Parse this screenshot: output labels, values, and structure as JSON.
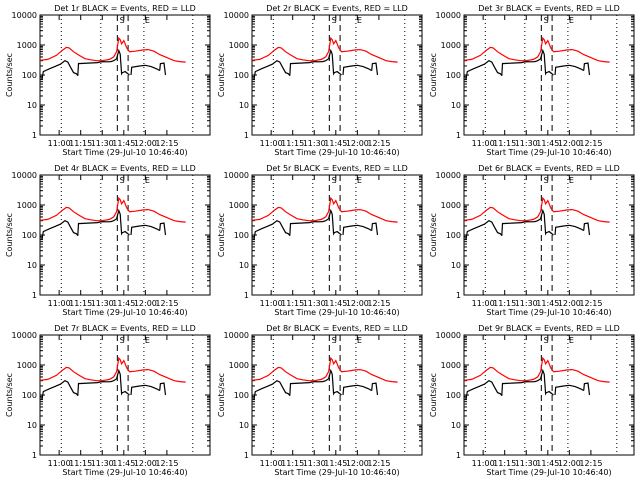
{
  "chart_data": [
    {
      "type": "line",
      "title": "Det 1r BLACK = Events, RED = LLD"
    },
    {
      "type": "line",
      "title": "Det 2r BLACK = Events, RED = LLD"
    },
    {
      "type": "line",
      "title": "Det 3r BLACK = Events, RED = LLD"
    },
    {
      "type": "line",
      "title": "Det 4r BLACK = Events, RED = LLD"
    },
    {
      "type": "line",
      "title": "Det 5r BLACK = Events, RED = LLD"
    },
    {
      "type": "line",
      "title": "Det 6r BLACK = Events, RED = LLD"
    },
    {
      "type": "line",
      "title": "Det 7r BLACK = Events, RED = LLD"
    },
    {
      "type": "line",
      "title": "Det 8r BLACK = Events, RED = LLD"
    },
    {
      "type": "line",
      "title": "Det 9r BLACK = Events, RED = LLD"
    }
  ],
  "shared": {
    "xlabel": "Start Time (29-Jul-10 10:46:40)",
    "ylabel": "Counts/sec",
    "x_tick_labels": [
      "11:00",
      "11:15",
      "11:30",
      "11:45",
      "12:00",
      "12:15"
    ],
    "x_tick_minutes": [
      660,
      675,
      690,
      705,
      720,
      735
    ],
    "y_tick_labels": [
      "1",
      "10",
      "100",
      "1000",
      "10000"
    ],
    "y_tick_values": [
      1,
      10,
      100,
      1000,
      10000
    ],
    "xlim_minutes": [
      646.67,
      765
    ],
    "ylim": [
      1,
      10000
    ],
    "y_scale": "log",
    "marker_S_label": "S",
    "marker_E_label": "E",
    "dotted_lines_minutes": [
      661.5,
      689,
      719,
      753
    ],
    "dashed_lines_minutes": [
      700.5,
      708
    ],
    "colors": {
      "lld": "#ff0000",
      "events": "#000000"
    },
    "series_names": [
      "Events",
      "LLD"
    ],
    "lld_series": [
      [
        646.67,
        310
      ],
      [
        652,
        330
      ],
      [
        658,
        450
      ],
      [
        662,
        650
      ],
      [
        665,
        830
      ],
      [
        667,
        800
      ],
      [
        670,
        600
      ],
      [
        674,
        450
      ],
      [
        678,
        350
      ],
      [
        682,
        320
      ],
      [
        686,
        300
      ],
      [
        690,
        300
      ],
      [
        695,
        330
      ],
      [
        698,
        400
      ],
      [
        700,
        600
      ],
      [
        701.5,
        1700
      ],
      [
        702.5,
        1500
      ],
      [
        703.5,
        1100
      ],
      [
        705,
        1400
      ],
      [
        706,
        1100
      ],
      [
        707,
        800
      ],
      [
        709,
        600
      ],
      [
        713,
        620
      ],
      [
        718,
        680
      ],
      [
        722,
        700
      ],
      [
        726,
        620
      ],
      [
        730,
        480
      ],
      [
        735,
        380
      ],
      [
        740,
        300
      ],
      [
        744,
        280
      ],
      [
        748,
        270
      ]
    ],
    "events_segments": [
      [
        [
          648,
          70
        ],
        [
          649,
          130
        ],
        [
          653,
          160
        ],
        [
          657,
          190
        ],
        [
          661,
          230
        ],
        [
          664,
          300
        ],
        [
          666,
          270
        ],
        [
          668,
          180
        ],
        [
          670,
          120
        ],
        [
          672,
          110
        ],
        [
          673,
          95
        ]
      ],
      [
        [
          673,
          95
        ],
        [
          673.5,
          240
        ],
        [
          680,
          250
        ],
        [
          687,
          260
        ],
        [
          688,
          270
        ],
        [
          690,
          280
        ],
        [
          693,
          275
        ],
        [
          696,
          280
        ],
        [
          698,
          300
        ],
        [
          700,
          350
        ],
        [
          701.5,
          650
        ],
        [
          702.5,
          500
        ]
      ],
      [
        [
          702.5,
          500
        ],
        [
          703.5,
          110
        ],
        [
          704,
          120
        ],
        [
          706,
          130
        ],
        [
          709,
          100
        ]
      ],
      [
        [
          710,
          100
        ],
        [
          710.5,
          180
        ],
        [
          716,
          200
        ],
        [
          720,
          210
        ],
        [
          724,
          190
        ],
        [
          728,
          160
        ],
        [
          730,
          140
        ]
      ],
      [
        [
          730,
          140
        ],
        [
          730.5,
          240
        ],
        [
          733,
          250
        ],
        [
          734,
          100
        ]
      ]
    ]
  }
}
